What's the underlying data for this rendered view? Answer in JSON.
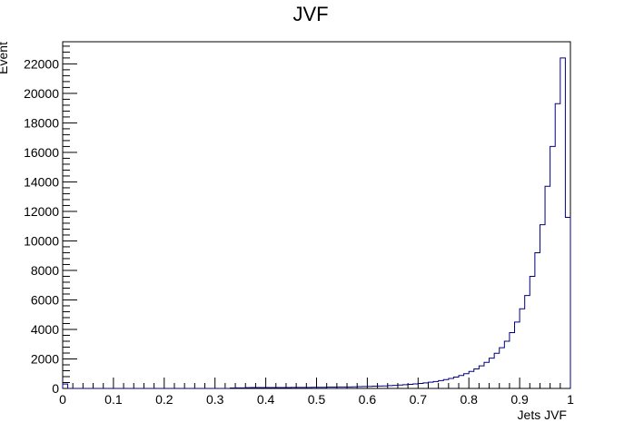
{
  "chart_data": {
    "type": "bar",
    "title": "JVF",
    "xlabel": "Jets JVF",
    "ylabel": "Event",
    "xlim": [
      0,
      1
    ],
    "ylim": [
      0,
      23500
    ],
    "x_ticks": [
      0,
      0.1,
      0.2,
      0.3,
      0.4,
      0.5,
      0.6,
      0.7,
      0.8,
      0.9,
      1
    ],
    "x_tick_labels": [
      "0",
      "0.1",
      "0.2",
      "0.3",
      "0.4",
      "0.5",
      "0.6",
      "0.7",
      "0.8",
      "0.9",
      "1"
    ],
    "y_ticks": [
      0,
      2000,
      4000,
      6000,
      8000,
      10000,
      12000,
      14000,
      16000,
      18000,
      20000,
      22000
    ],
    "y_tick_labels": [
      "0",
      "2000",
      "4000",
      "6000",
      "8000",
      "10000",
      "12000",
      "14000",
      "16000",
      "18000",
      "20000",
      "22000"
    ],
    "grid": false,
    "line_color": "#00007f",
    "bin_width": 0.01,
    "bins_start": 0,
    "values": [
      300,
      0,
      0,
      0,
      0,
      0,
      0,
      0,
      0,
      0,
      0,
      0,
      0,
      0,
      0,
      0,
      0,
      0,
      0,
      0,
      0,
      0,
      0,
      0,
      0,
      0,
      0,
      0,
      0,
      0,
      0,
      0,
      0,
      30,
      40,
      40,
      50,
      60,
      60,
      60,
      60,
      60,
      60,
      60,
      60,
      70,
      70,
      70,
      70,
      80,
      80,
      80,
      90,
      90,
      100,
      100,
      100,
      110,
      120,
      130,
      140,
      150,
      160,
      170,
      190,
      210,
      230,
      250,
      280,
      310,
      340,
      380,
      420,
      470,
      530,
      600,
      680,
      770,
      880,
      1000,
      1150,
      1320,
      1530,
      1770,
      2050,
      2380,
      2760,
      3200,
      3780,
      4500,
      5400,
      6300,
      7600,
      9200,
      11100,
      13700,
      16400,
      19300,
      22400,
      11600
    ]
  }
}
